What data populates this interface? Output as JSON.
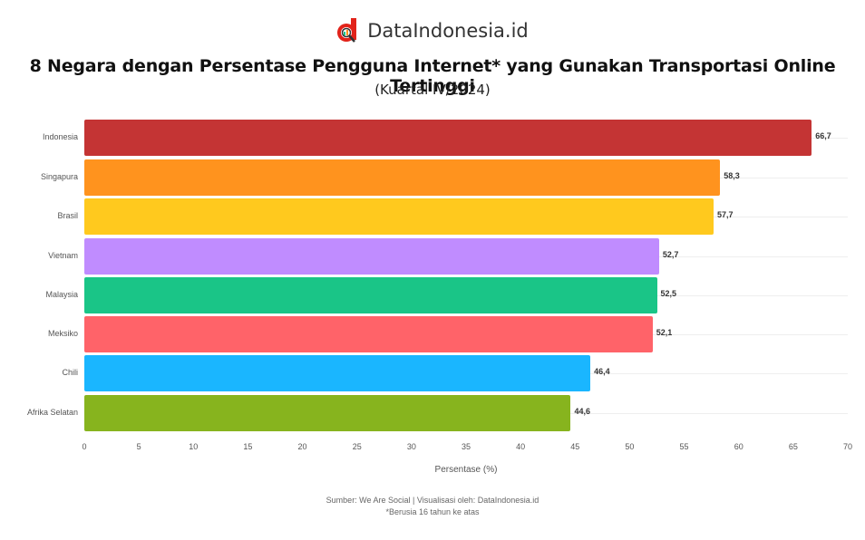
{
  "brand": {
    "name": "DataIndonesia.id",
    "logo_color": "#e2231a"
  },
  "header": {
    "title": "8 Negara dengan Persentase Pengguna Internet* yang Gunakan Transportasi Online Tertinggi",
    "subtitle": "(Kuartal IV/2024)"
  },
  "footer": {
    "source": "Sumber: We Are Social | Visualisasi oleh: DataIndonesia.id",
    "note": "*Berusia 16 tahun ke atas"
  },
  "chart_data": {
    "type": "bar",
    "orientation": "horizontal",
    "title": "8 Negara dengan Persentase Pengguna Internet* yang Gunakan Transportasi Online Tertinggi",
    "subtitle": "(Kuartal IV/2024)",
    "categories": [
      "Indonesia",
      "Singapura",
      "Brasil",
      "Vietnam",
      "Malaysia",
      "Meksiko",
      "Chili",
      "Afrika Selatan"
    ],
    "values": [
      66.7,
      58.3,
      57.7,
      52.7,
      52.5,
      52.1,
      46.4,
      44.6
    ],
    "value_labels": [
      "66,7",
      "58,3",
      "57,7",
      "52,7",
      "52,5",
      "52,1",
      "46,4",
      "44,6"
    ],
    "colors": [
      "#c43434",
      "#ff931e",
      "#ffc91e",
      "#c08cff",
      "#1ac587",
      "#ff6369",
      "#1ab6ff",
      "#87b41e"
    ],
    "xlabel": "Persentase (%)",
    "ylabel": "",
    "xlim": [
      0,
      70
    ],
    "xticks": [
      "0",
      "5",
      "10",
      "15",
      "20",
      "25",
      "30",
      "35",
      "40",
      "45",
      "50",
      "55",
      "60",
      "65",
      "70"
    ],
    "grid": true,
    "legend": "none"
  }
}
